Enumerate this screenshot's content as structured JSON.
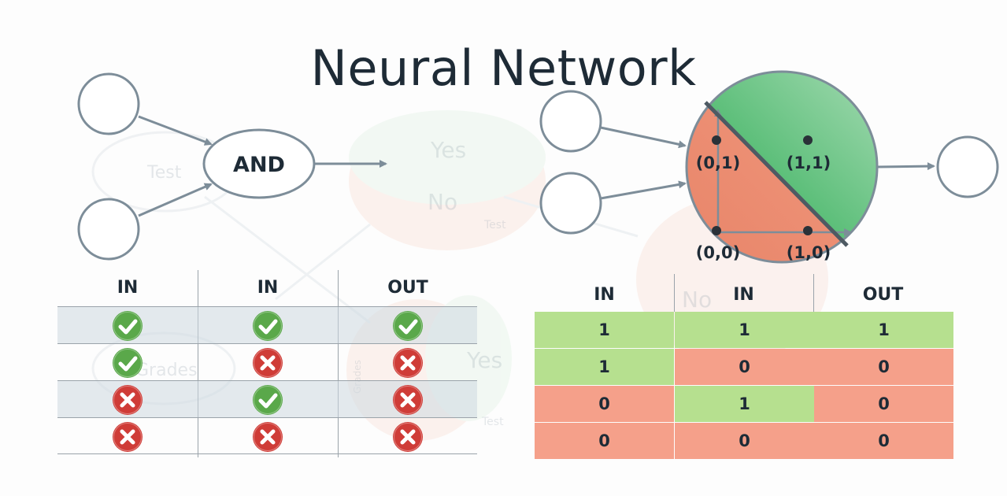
{
  "title": "Neural Network",
  "perceptron": {
    "node_label": "AND"
  },
  "plot": {
    "points": [
      {
        "label": "(0,1)"
      },
      {
        "label": "(1,1)"
      },
      {
        "label": "(0,0)"
      },
      {
        "label": "(1,0)"
      }
    ]
  },
  "faded_background": {
    "words": [
      "Test",
      "Yes",
      "No",
      "Test",
      "Grades",
      "Yes",
      "No",
      "Test",
      "Grades"
    ]
  },
  "left_table": {
    "headers": [
      "IN",
      "IN",
      "OUT"
    ],
    "rows": [
      [
        "check",
        "check",
        "check"
      ],
      [
        "check",
        "cross",
        "cross"
      ],
      [
        "cross",
        "check",
        "cross"
      ],
      [
        "cross",
        "cross",
        "cross"
      ]
    ],
    "colors": {
      "check": "#5aa84a",
      "cross": "#cf3c37"
    }
  },
  "right_table": {
    "headers": [
      "IN",
      "IN",
      "OUT"
    ],
    "rows": [
      [
        "1",
        "1",
        "1"
      ],
      [
        "1",
        "0",
        "0"
      ],
      [
        "0",
        "1",
        "0"
      ],
      [
        "0",
        "0",
        "0"
      ]
    ],
    "colors": {
      "positive": "#b6e08f",
      "negative": "#f5a08a"
    }
  },
  "colors": {
    "node_stroke": "#7d8d99",
    "region_green": "#5dbf7a",
    "region_red": "#ef8c72",
    "text": "#1e2b36"
  }
}
